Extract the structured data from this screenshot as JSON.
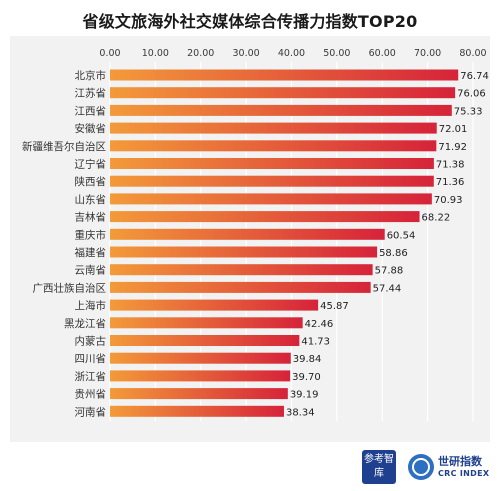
{
  "title": "省级文旅海外社交媒体综合传播力指数TOP20",
  "colors": {
    "bar_start": "#f39a3a",
    "bar_end": "#d6233a",
    "panel_bg": "#f2f2f2",
    "grid": "#ffffff",
    "axis_text": "#3a3a3a"
  },
  "chart_data": {
    "type": "bar",
    "orientation": "horizontal",
    "title": "省级文旅海外社交媒体综合传播力指数TOP20",
    "xlabel": "",
    "ylabel": "",
    "xlim": [
      0,
      80
    ],
    "x_ticks": [
      "0.00",
      "10.00",
      "20.00",
      "30.00",
      "40.00",
      "50.00",
      "60.00",
      "70.00",
      "80.00"
    ],
    "grid": true,
    "categories": [
      "北京市",
      "江苏省",
      "江西省",
      "安徽省",
      "新疆维吾尔自治区",
      "辽宁省",
      "陕西省",
      "山东省",
      "吉林省",
      "重庆市",
      "福建省",
      "云南省",
      "广西壮族自治区",
      "上海市",
      "黑龙江省",
      "内蒙古",
      "四川省",
      "浙江省",
      "贵州省",
      "河南省"
    ],
    "values": [
      76.74,
      76.06,
      75.33,
      72.01,
      71.92,
      71.38,
      71.36,
      70.93,
      68.22,
      60.54,
      58.86,
      57.88,
      57.44,
      45.87,
      42.46,
      41.73,
      39.84,
      39.7,
      39.19,
      38.34
    ],
    "value_labels": [
      "76.74",
      "76.06",
      "75.33",
      "72.01",
      "71.92",
      "71.38",
      "71.36",
      "70.93",
      "68.22",
      "60.54",
      "58.86",
      "57.88",
      "57.44",
      "45.87",
      "42.46",
      "41.73",
      "39.84",
      "39.70",
      "39.19",
      "38.34"
    ]
  },
  "footer": {
    "logo1_text": "参考智库",
    "logo2_cn": "世研指数",
    "logo2_en": "CRC INDEX"
  }
}
